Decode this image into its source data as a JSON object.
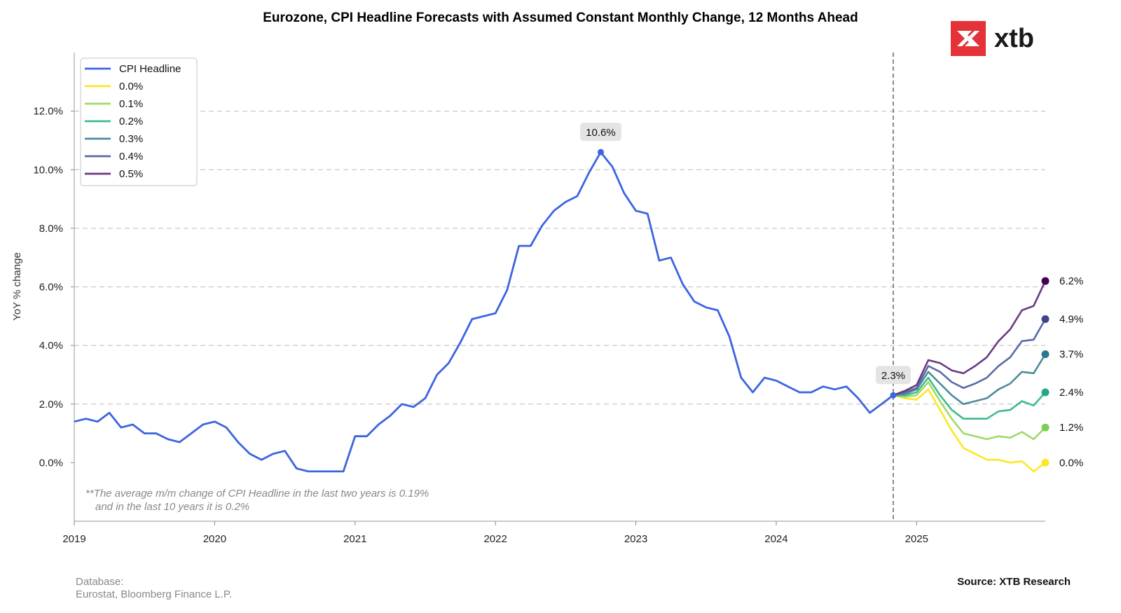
{
  "chart_data": {
    "type": "line",
    "title": "Eurozone, CPI Headline Forecasts with Assumed Constant Monthly Change, 12 Months Ahead",
    "ylabel": "YoY % change",
    "xlabel": "",
    "xlim": [
      "2019-01",
      "2025-12"
    ],
    "ylim": [
      -2.0,
      14.0
    ],
    "yticks": [
      0,
      2,
      4,
      6,
      8,
      10,
      12
    ],
    "ytick_labels": [
      "0.0%",
      "2.0%",
      "4.0%",
      "6.0%",
      "8.0%",
      "10.0%",
      "12.0%"
    ],
    "xtick_labels": [
      "2019",
      "2020",
      "2021",
      "2022",
      "2023",
      "2024",
      "2025"
    ],
    "grid": "horizontal dashed",
    "legend_position": "top-left",
    "vertical_marker": "2024-11",
    "history": {
      "name": "CPI Headline",
      "color": "#3c64e0",
      "start": "2019-01",
      "values": [
        1.4,
        1.5,
        1.4,
        1.7,
        1.2,
        1.3,
        1.0,
        1.0,
        0.8,
        0.7,
        1.0,
        1.3,
        1.4,
        1.2,
        0.7,
        0.3,
        0.1,
        0.3,
        0.4,
        -0.2,
        -0.3,
        -0.3,
        -0.3,
        -0.3,
        0.9,
        0.9,
        1.3,
        1.6,
        2.0,
        1.9,
        2.2,
        3.0,
        3.4,
        4.1,
        4.9,
        5.0,
        5.1,
        5.9,
        7.4,
        7.4,
        8.1,
        8.6,
        8.9,
        9.1,
        9.9,
        10.6,
        10.1,
        9.2,
        8.6,
        8.5,
        6.9,
        7.0,
        6.1,
        5.5,
        5.3,
        5.2,
        4.3,
        2.9,
        2.4,
        2.9,
        2.8,
        2.6,
        2.4,
        2.4,
        2.6,
        2.5,
        2.6,
        2.2,
        1.7,
        2.0,
        2.3
      ]
    },
    "forecast_months": [
      "2024-11",
      "2024-12",
      "2025-01",
      "2025-02",
      "2025-03",
      "2025-04",
      "2025-05",
      "2025-06",
      "2025-07",
      "2025-08",
      "2025-09",
      "2025-10",
      "2025-11",
      "2025-12"
    ],
    "series": [
      {
        "name": "0.0%",
        "color": "#fde725",
        "end_color": "#fde725",
        "end_label": "0.0%",
        "values": [
          2.3,
          2.2,
          2.15,
          2.5,
          1.8,
          1.1,
          0.5,
          0.3,
          0.1,
          0.1,
          0.0,
          0.05,
          -0.3,
          0.0
        ]
      },
      {
        "name": "0.1%",
        "color": "#a0da6a",
        "end_color": "#7ad151",
        "end_label": "1.2%",
        "values": [
          2.3,
          2.25,
          2.3,
          2.75,
          2.1,
          1.5,
          1.0,
          0.9,
          0.8,
          0.9,
          0.85,
          1.05,
          0.8,
          1.2
        ]
      },
      {
        "name": "0.2%",
        "color": "#3fbc8b",
        "end_color": "#22a884",
        "end_label": "2.4%",
        "values": [
          2.3,
          2.3,
          2.4,
          2.9,
          2.3,
          1.8,
          1.5,
          1.5,
          1.5,
          1.75,
          1.8,
          2.1,
          1.95,
          2.4
        ]
      },
      {
        "name": "0.3%",
        "color": "#4b8d9b",
        "end_color": "#2a788e",
        "end_label": "3.7%",
        "values": [
          2.3,
          2.35,
          2.5,
          3.1,
          2.7,
          2.3,
          2.0,
          2.1,
          2.2,
          2.5,
          2.7,
          3.1,
          3.05,
          3.7
        ]
      },
      {
        "name": "0.4%",
        "color": "#5a6aa8",
        "end_color": "#414487",
        "end_label": "4.9%",
        "values": [
          2.3,
          2.4,
          2.55,
          3.3,
          3.1,
          2.75,
          2.55,
          2.7,
          2.9,
          3.3,
          3.6,
          4.15,
          4.2,
          4.9
        ]
      },
      {
        "name": "0.5%",
        "color": "#6a3a82",
        "end_color": "#440154",
        "end_label": "6.2%",
        "values": [
          2.3,
          2.45,
          2.65,
          3.5,
          3.4,
          3.15,
          3.05,
          3.3,
          3.6,
          4.15,
          4.55,
          5.2,
          5.35,
          6.2
        ]
      }
    ],
    "annotations": [
      {
        "text": "10.6%",
        "x": "2022-10",
        "y": 10.6
      },
      {
        "text": "2.3%",
        "x": "2024-11",
        "y": 2.3
      }
    ],
    "note_lines": [
      "**The average m/m change of CPI Headline in the last two years is 0.19%",
      "and in the last 10 years it is 0.2%"
    ]
  },
  "footer": {
    "database_label": "Database:",
    "database_value": "Eurostat, Bloomberg Finance L.P.",
    "source": "Source: XTB Research"
  },
  "logo": {
    "text": "xtb",
    "icon": "xtb-x-icon",
    "color": "#e53238"
  }
}
